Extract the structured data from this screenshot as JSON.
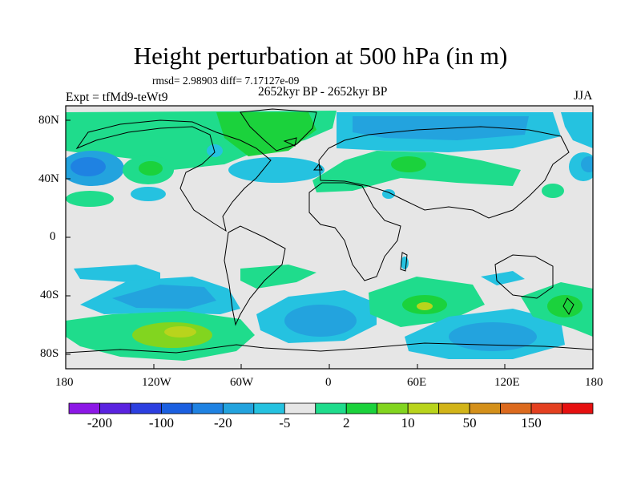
{
  "title": "Height perturbation at 500 hPa (in m)",
  "stats_line": "rmsd= 2.98903 diff= 7.17127e-09",
  "period": "2652kyr BP - 2652kyr BP",
  "experiment": "Expt = tfMd9-teWt9",
  "season": "JJA",
  "lat_labels": [
    "80N",
    "40N",
    "0",
    "40S",
    "80S"
  ],
  "lon_labels": [
    "180",
    "120W",
    "60W",
    "0",
    "60E",
    "120E",
    "180"
  ],
  "colorbar": {
    "colors": [
      "#8c17e6",
      "#5a23e0",
      "#2c3fe0",
      "#1b5fe0",
      "#1f82e2",
      "#23a3de",
      "#25c2e0",
      "#e6e6e6",
      "#1fdc8c",
      "#1bd23c",
      "#82d51f",
      "#b9d41c",
      "#d2b419",
      "#d4901a",
      "#dc6a1e",
      "#e44020",
      "#e61010"
    ],
    "labels": [
      "-200",
      "-100",
      "-20",
      "-5",
      "2",
      "10",
      "50",
      "150"
    ]
  }
}
